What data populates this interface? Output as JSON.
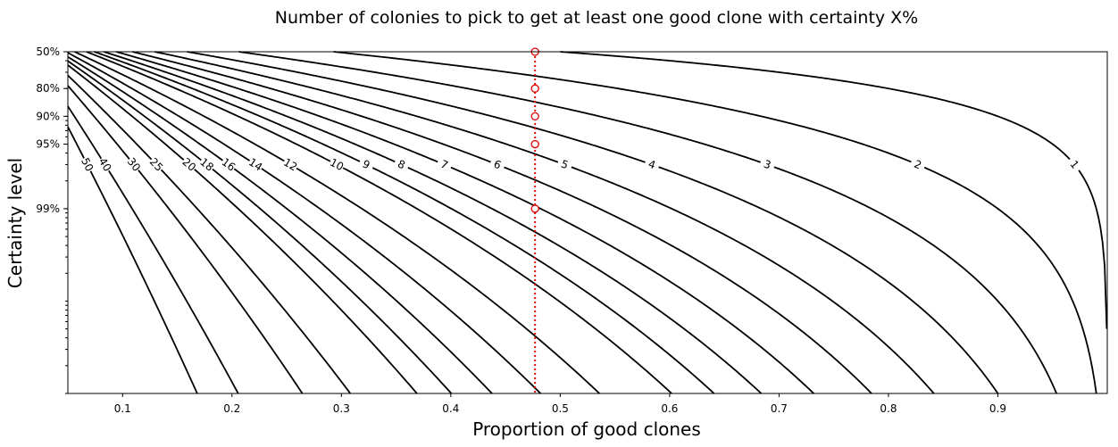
{
  "chart_data": {
    "type": "contour",
    "title": "Number of colonies to pick to get at least one good clone with certainty X%",
    "xlabel": "Proportion of good clones",
    "ylabel": "Certainty level",
    "xlim": [
      0.05,
      1.0
    ],
    "x_ticks": [
      0.1,
      0.2,
      0.3,
      0.4,
      0.5,
      0.6,
      0.7,
      0.8,
      0.9
    ],
    "x_tick_labels": [
      "0.1",
      "0.2",
      "0.3",
      "0.4",
      "0.5",
      "0.6",
      "0.7",
      "0.8",
      "0.9"
    ],
    "y_scale": "log of (1 - certainty)",
    "y_range": [
      0.5,
      0.9999
    ],
    "y_ticks": [
      0.5,
      0.8,
      0.9,
      0.95,
      0.99
    ],
    "y_tick_labels": [
      "50%",
      "80%",
      "90%",
      "95%",
      "99%"
    ],
    "contour_levels": [
      1,
      2,
      3,
      4,
      5,
      6,
      7,
      8,
      9,
      10,
      12,
      14,
      16,
      18,
      20,
      25,
      30,
      40,
      50
    ],
    "contour_labels": [
      "1",
      "2",
      "3",
      "4",
      "5",
      "6",
      "7",
      "8",
      "9",
      "10",
      "12",
      "14",
      "16",
      "18",
      "20",
      "25",
      "30",
      "40",
      "50"
    ],
    "marker_x": 0.477,
    "marker_points_certainty": [
      0.5,
      0.8,
      0.9,
      0.95,
      0.99
    ],
    "marker_color": "#e00000",
    "line_color": "#000000"
  }
}
